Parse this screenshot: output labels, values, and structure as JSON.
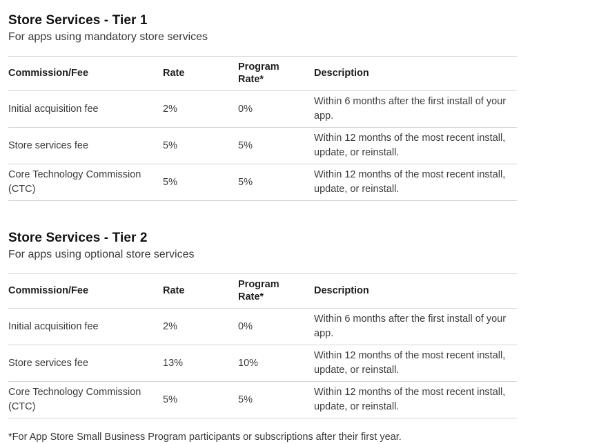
{
  "sections": [
    {
      "title": "Store Services - Tier 1",
      "subtitle": "For apps using mandatory store services",
      "table": {
        "headers": {
          "fee": "Commission/Fee",
          "rate": "Rate",
          "program_rate": "Program Rate*",
          "description": "Description"
        },
        "rows": [
          {
            "fee": "Initial acquisition fee",
            "rate": "2%",
            "program_rate": "0%",
            "description": "Within 6 months after the first install of your app."
          },
          {
            "fee": "Store services fee",
            "rate": "5%",
            "program_rate": "5%",
            "description": "Within 12 months of the most recent install, update, or reinstall."
          },
          {
            "fee": "Core Technology Commission (CTC)",
            "rate": "5%",
            "program_rate": "5%",
            "description": "Within 12 months of the most recent install, update, or reinstall."
          }
        ]
      }
    },
    {
      "title": "Store Services - Tier 2",
      "subtitle": "For apps using optional store services",
      "table": {
        "headers": {
          "fee": "Commission/Fee",
          "rate": "Rate",
          "program_rate": "Program Rate*",
          "description": "Description"
        },
        "rows": [
          {
            "fee": "Initial acquisition fee",
            "rate": "2%",
            "program_rate": "0%",
            "description": "Within 6 months after the first install of your app."
          },
          {
            "fee": "Store services fee",
            "rate": "13%",
            "program_rate": "10%",
            "description": "Within 12 months of the most recent install, update, or reinstall."
          },
          {
            "fee": "Core Technology Commission (CTC)",
            "rate": "5%",
            "program_rate": "5%",
            "description": "Within 12 months of the most recent install, update, or reinstall."
          }
        ]
      }
    }
  ],
  "footnote": "*For App Store Small Business Program participants or subscriptions after their first year."
}
